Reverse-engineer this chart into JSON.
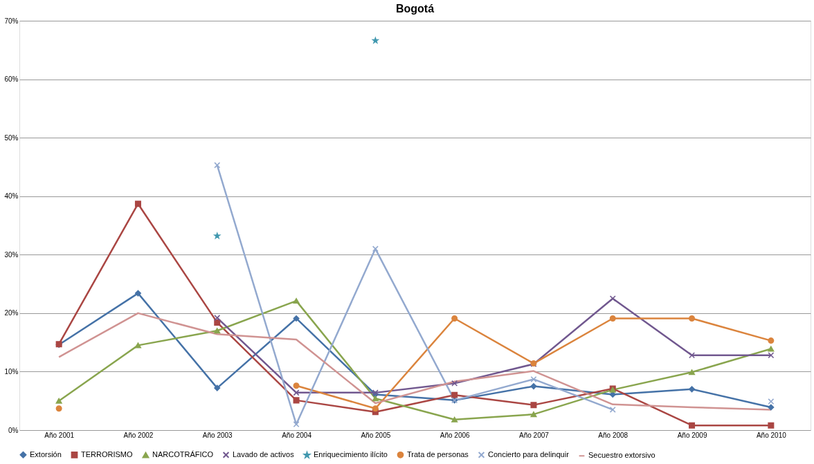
{
  "chart_data": {
    "type": "line",
    "title": "Bogotá",
    "categories": [
      "Año 2001",
      "Año 2002",
      "Año 2003",
      "Año 2004",
      "Año 2005",
      "Año 2006",
      "Año 2007",
      "Año 2008",
      "Año 2009",
      "Año 2010"
    ],
    "ylim": [
      0,
      70
    ],
    "yticks": [
      {
        "value": 0,
        "label": "0%"
      },
      {
        "value": 10,
        "label": "10%"
      },
      {
        "value": 20,
        "label": "20%"
      },
      {
        "value": 30,
        "label": "30%"
      },
      {
        "value": 40,
        "label": "40%"
      },
      {
        "value": 50,
        "label": "50%"
      },
      {
        "value": 60,
        "label": "60%"
      },
      {
        "value": 70,
        "label": "70%"
      }
    ],
    "grid": "y",
    "legend": "bottom",
    "series": [
      {
        "name": "Extorsión",
        "color": "#4572a7",
        "marker": "diamond",
        "values": [
          14.6,
          23.4,
          7.2,
          19.1,
          6.1,
          5.1,
          7.5,
          6.1,
          7.0,
          3.9
        ]
      },
      {
        "name": "TERRORISMO",
        "color": "#aa4643",
        "marker": "square",
        "values": [
          14.7,
          38.7,
          18.4,
          5.1,
          3.1,
          6.0,
          4.3,
          7.1,
          0.8,
          0.8
        ]
      },
      {
        "name": "NARCOTRÁFICO",
        "color": "#89a54e",
        "marker": "triangle",
        "values": [
          5.0,
          14.5,
          17.0,
          22.1,
          5.4,
          1.8,
          2.7,
          6.9,
          9.9,
          13.9
        ]
      },
      {
        "name": "Lavado de activos",
        "color": "#71588f",
        "marker": "cross",
        "values": [
          null,
          null,
          19.2,
          6.4,
          6.4,
          8.0,
          11.3,
          22.5,
          12.8,
          12.8
        ]
      },
      {
        "name": "Enriquecimiento ilícito",
        "type": "scatter",
        "color": "#4198af",
        "marker": "star",
        "values": [
          null,
          null,
          33.2,
          null,
          66.6,
          null,
          null,
          null,
          null,
          null
        ]
      },
      {
        "name": "Trata de personas",
        "color": "#db843d",
        "marker": "circle",
        "values": [
          3.7,
          null,
          null,
          7.6,
          3.7,
          19.1,
          11.4,
          19.1,
          19.1,
          15.3
        ]
      },
      {
        "name": "Concierto para delinquir",
        "color": "#93a9cf",
        "marker": "cross",
        "values": [
          null,
          null,
          45.3,
          1.0,
          31.0,
          5.1,
          8.7,
          3.5,
          null,
          4.9
        ]
      },
      {
        "name": "Secuestro extorsivo",
        "color": "#d09392",
        "marker": "none",
        "values": [
          12.5,
          20.0,
          16.4,
          15.5,
          4.6,
          8.3,
          10.1,
          4.4,
          3.9,
          3.5
        ]
      }
    ]
  }
}
